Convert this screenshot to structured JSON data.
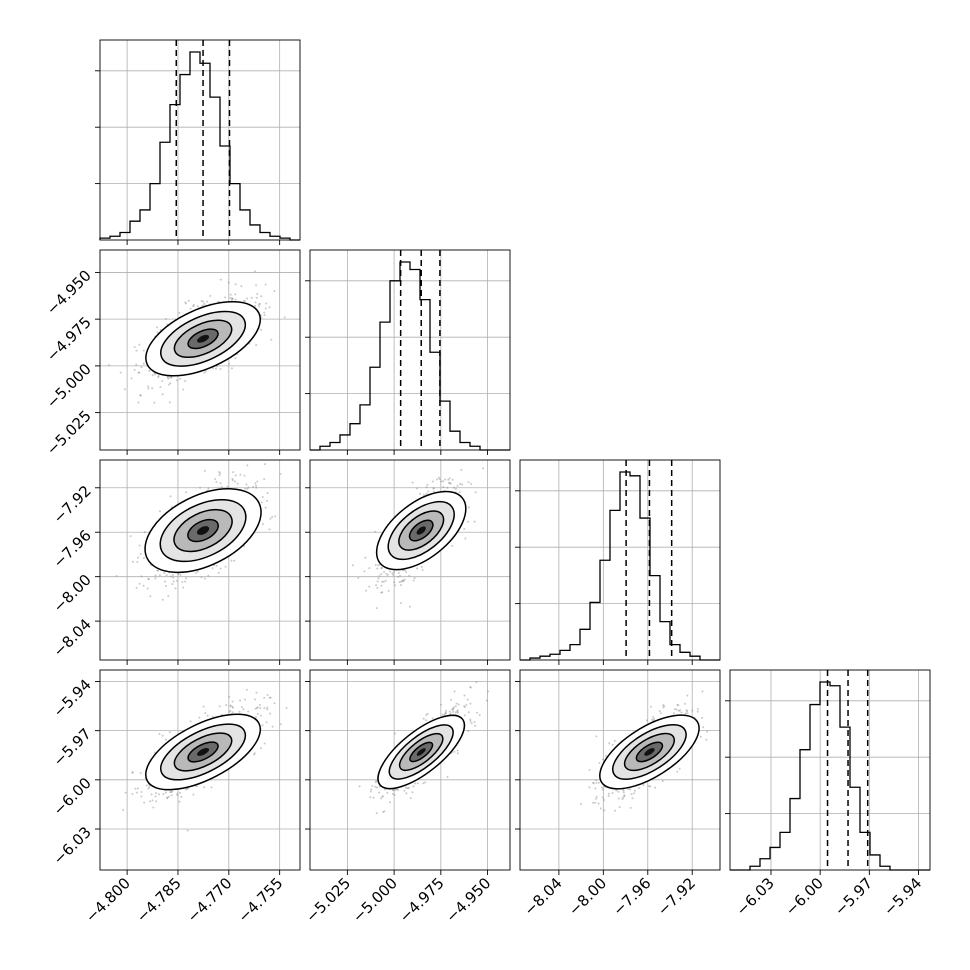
{
  "chart_data": {
    "type": "corner",
    "parameters": [
      {
        "range": [
          -4.808,
          -4.749
        ],
        "ticks": [
          -4.8,
          -4.785,
          -4.77,
          -4.755
        ],
        "tick_labels": [
          "−4.800",
          "−4.785",
          "−4.770",
          "−4.755"
        ],
        "median": -4.7776,
        "quantiles": [
          -4.7855,
          -4.7698
        ]
      },
      {
        "range": [
          -5.045,
          -4.938
        ],
        "ticks": [
          -5.025,
          -5.0,
          -4.975,
          -4.95
        ],
        "tick_labels": [
          "−5.025",
          "−5.000",
          "−4.975",
          "−4.950"
        ],
        "median": -4.9855,
        "quantiles": [
          -4.9965,
          -4.9755
        ]
      },
      {
        "range": [
          -8.075,
          -7.895
        ],
        "ticks": [
          -8.04,
          -8.0,
          -7.96,
          -7.92
        ],
        "tick_labels": [
          "−8.04",
          "−8.00",
          "−7.96",
          "−7.92"
        ],
        "median": -7.9585,
        "quantiles": [
          -7.9795,
          -7.9385
        ]
      },
      {
        "range": [
          -6.055,
          -5.933
        ],
        "ticks": [
          -6.03,
          -6.0,
          -5.97,
          -5.94
        ],
        "tick_labels": [
          "−6.03",
          "−6.00",
          "−5.97",
          "−5.94"
        ],
        "median": -5.983,
        "quantiles": [
          -5.9955,
          -5.971
        ]
      }
    ],
    "histograms": [
      [
        0.01,
        0.02,
        0.04,
        0.1,
        0.16,
        0.3,
        0.52,
        0.72,
        0.88,
        1.0,
        0.94,
        0.76,
        0.5,
        0.3,
        0.16,
        0.08,
        0.04,
        0.02,
        0.01,
        0.0
      ],
      [
        0.0,
        0.02,
        0.04,
        0.08,
        0.14,
        0.24,
        0.44,
        0.68,
        0.9,
        1.0,
        0.96,
        0.8,
        0.52,
        0.26,
        0.1,
        0.04,
        0.02,
        0.0,
        0.0,
        0.0
      ],
      [
        0.0,
        0.01,
        0.02,
        0.03,
        0.05,
        0.08,
        0.16,
        0.3,
        0.52,
        0.78,
        0.98,
        0.96,
        0.74,
        0.44,
        0.2,
        0.08,
        0.04,
        0.02,
        0.0,
        0.0
      ],
      [
        0.0,
        0.0,
        0.02,
        0.06,
        0.12,
        0.2,
        0.38,
        0.64,
        0.88,
        1.0,
        0.98,
        0.76,
        0.44,
        0.2,
        0.08,
        0.02,
        0.0,
        0.0,
        0.0,
        0.0
      ]
    ],
    "correlations": {
      "1-0": 0.62,
      "2-0": 0.58,
      "2-1": 0.68,
      "3-0": 0.68,
      "3-1": 0.78,
      "3-2": 0.72
    },
    "grid": true,
    "colors": {
      "line": "#000000",
      "points": "#888888",
      "grid": "#b0b0b0"
    }
  }
}
